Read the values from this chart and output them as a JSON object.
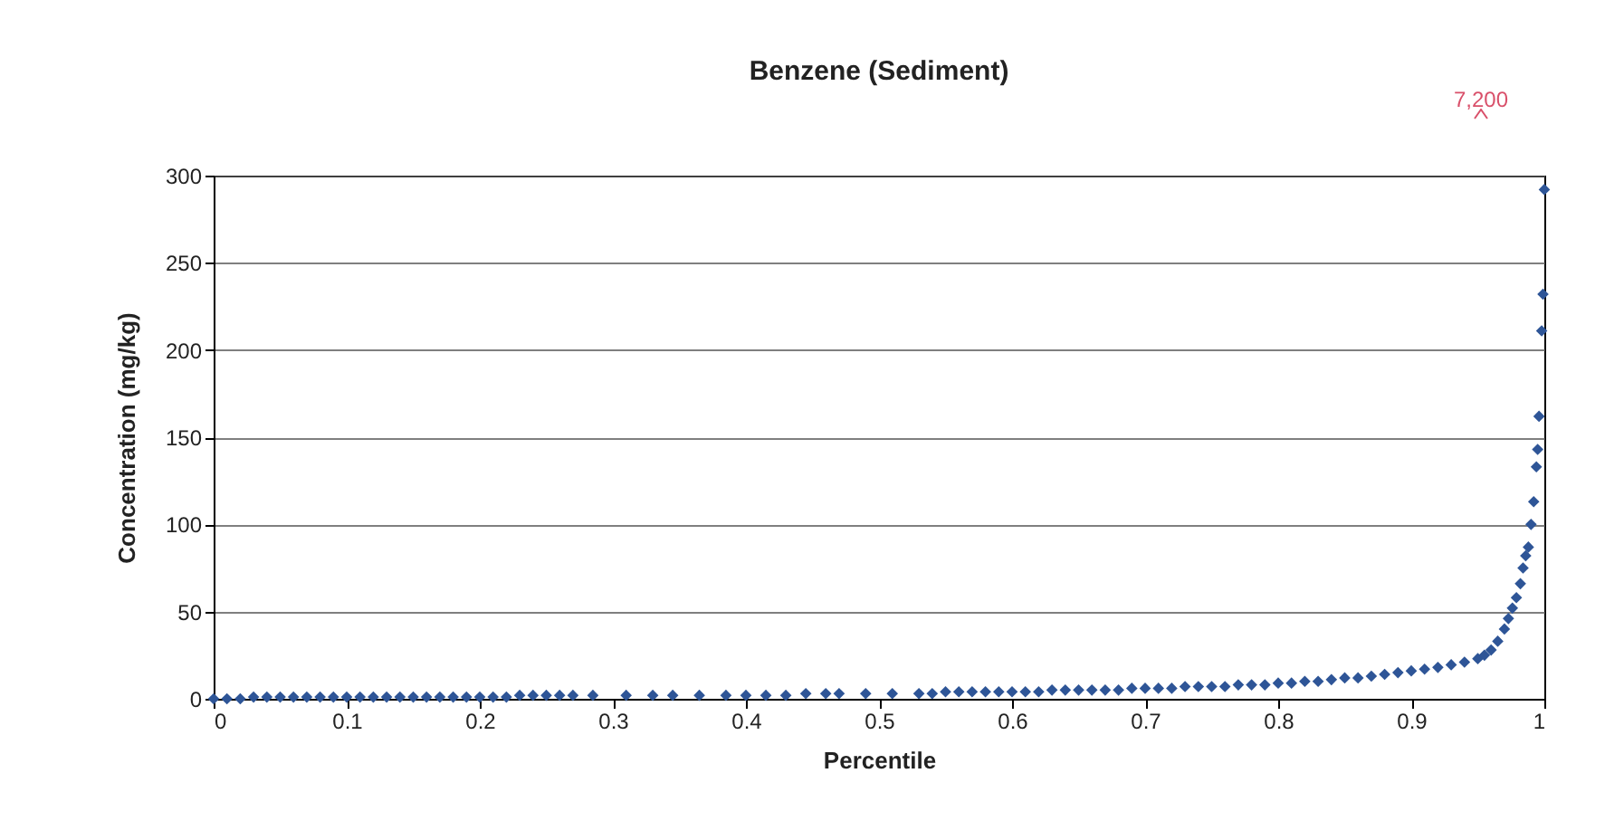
{
  "chart_data": {
    "type": "scatter",
    "title": "Benzene (Sediment)",
    "xlabel": "Percentile",
    "ylabel": "Concentration (mg/kg)",
    "x": [
      0,
      0.01,
      0.02,
      0.03,
      0.04,
      0.05,
      0.06,
      0.07,
      0.08,
      0.09,
      0.1,
      0.11,
      0.12,
      0.13,
      0.14,
      0.15,
      0.16,
      0.17,
      0.18,
      0.19,
      0.2,
      0.21,
      0.22,
      0.23,
      0.24,
      0.25,
      0.26,
      0.27,
      0.285,
      0.31,
      0.33,
      0.345,
      0.365,
      0.385,
      0.4,
      0.415,
      0.43,
      0.445,
      0.46,
      0.47,
      0.49,
      0.51,
      0.53,
      0.54,
      0.55,
      0.56,
      0.57,
      0.58,
      0.59,
      0.6,
      0.61,
      0.62,
      0.63,
      0.64,
      0.65,
      0.66,
      0.67,
      0.68,
      0.69,
      0.7,
      0.71,
      0.72,
      0.73,
      0.74,
      0.75,
      0.76,
      0.77,
      0.78,
      0.79,
      0.8,
      0.81,
      0.82,
      0.83,
      0.84,
      0.85,
      0.86,
      0.87,
      0.88,
      0.89,
      0.9,
      0.91,
      0.92,
      0.93,
      0.94,
      0.95,
      0.955,
      0.96,
      0.965,
      0.97,
      0.973,
      0.976,
      0.979,
      0.982,
      0.984,
      0.986,
      0.988,
      0.99,
      0.992,
      0.994,
      0.995,
      0.996,
      0.998,
      0.999,
      1
    ],
    "series": [
      {
        "color": "#2e5597",
        "values": [
          0,
          0,
          0,
          1,
          1,
          1,
          1,
          1,
          1,
          1,
          1,
          1,
          1,
          1,
          1,
          1,
          1,
          1,
          1,
          1,
          1,
          1,
          1,
          2,
          2,
          2,
          2,
          2,
          2,
          2,
          2,
          2,
          2,
          2,
          2,
          2,
          2,
          3,
          3,
          3,
          3,
          3,
          3,
          3,
          4,
          4,
          4,
          4,
          4,
          4,
          4,
          4,
          5,
          5,
          5,
          5,
          5,
          5,
          6,
          6,
          6,
          6,
          7,
          7,
          7,
          7,
          8,
          8,
          8,
          9,
          9,
          10,
          10,
          11,
          12,
          12,
          13,
          14,
          15,
          16,
          17,
          18,
          19.5,
          21,
          23,
          25,
          28,
          33,
          40,
          46,
          52,
          58,
          66,
          75,
          82,
          87,
          100,
          113,
          133,
          143,
          162,
          211,
          232,
          292
        ]
      }
    ],
    "xlim": [
      0,
      1
    ],
    "xticks": [
      0,
      0.1,
      0.2,
      0.3,
      0.4,
      0.5,
      0.6,
      0.7,
      0.8,
      0.9,
      1
    ],
    "ylim": [
      0,
      300
    ],
    "yticks": [
      0,
      50,
      100,
      150,
      200,
      250,
      300
    ],
    "grid": "y",
    "marker": "diamond",
    "legend": false,
    "annotations": [
      "7,200"
    ]
  }
}
